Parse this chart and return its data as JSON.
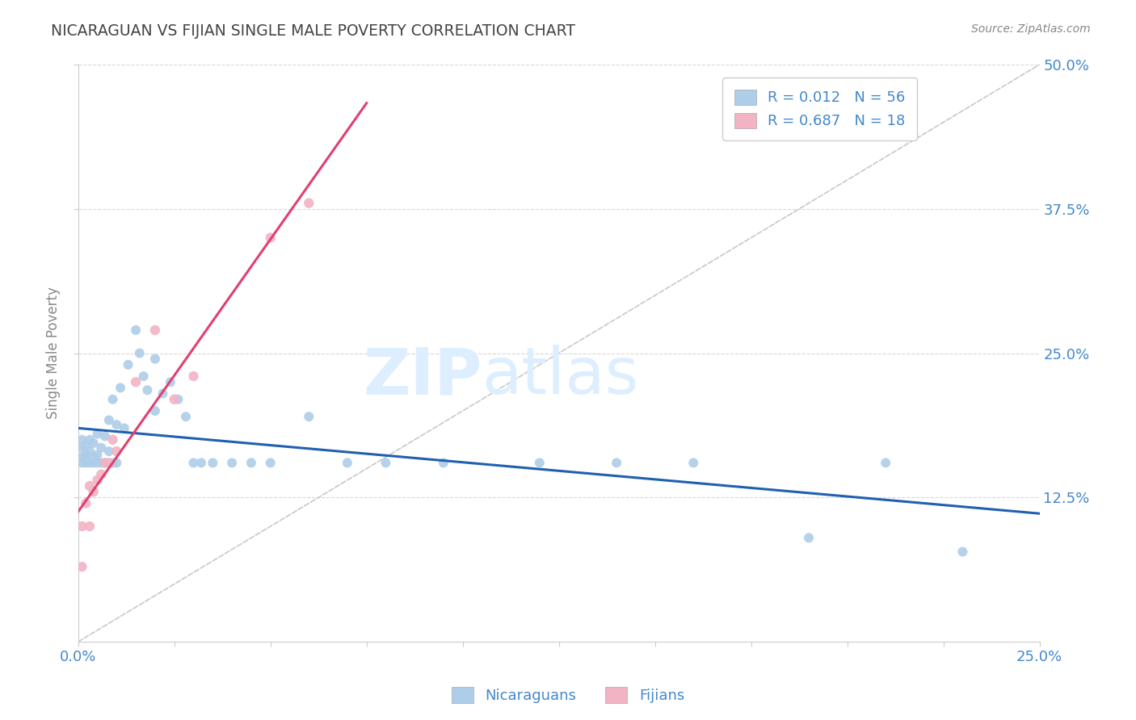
{
  "title": "NICARAGUAN VS FIJIAN SINGLE MALE POVERTY CORRELATION CHART",
  "source": "Source: ZipAtlas.com",
  "ylabel": "Single Male Poverty",
  "xlim": [
    0.0,
    0.25
  ],
  "ylim": [
    0.0,
    0.5
  ],
  "yticks": [
    0.125,
    0.25,
    0.375,
    0.5
  ],
  "ytick_labels_right": [
    "12.5%",
    "25.0%",
    "37.5%",
    "50.0%"
  ],
  "xtick_positions": [
    0.0,
    0.25
  ],
  "xtick_labels": [
    "0.0%",
    "25.0%"
  ],
  "nicaraguan_color": "#aecde8",
  "fijian_color": "#f2b3c4",
  "nicaraguan_line_color": "#2060b0",
  "fijian_line_color": "#e04070",
  "ref_line_color": "#c8c8c8",
  "background_color": "#ffffff",
  "title_color": "#444444",
  "tick_label_color": "#4488cc",
  "ylabel_color": "#888888",
  "source_color": "#888888",
  "watermark_color": "#ddeeff",
  "nic_x": [
    0.001,
    0.001,
    0.001,
    0.001,
    0.002,
    0.002,
    0.002,
    0.002,
    0.003,
    0.003,
    0.003,
    0.004,
    0.004,
    0.004,
    0.005,
    0.005,
    0.005,
    0.006,
    0.006,
    0.007,
    0.007,
    0.008,
    0.008,
    0.009,
    0.009,
    0.01,
    0.01,
    0.011,
    0.012,
    0.013,
    0.015,
    0.016,
    0.017,
    0.018,
    0.02,
    0.02,
    0.022,
    0.024,
    0.026,
    0.028,
    0.03,
    0.032,
    0.035,
    0.04,
    0.045,
    0.05,
    0.06,
    0.07,
    0.08,
    0.095,
    0.12,
    0.14,
    0.16,
    0.19,
    0.21,
    0.23
  ],
  "nic_y": [
    0.155,
    0.16,
    0.168,
    0.175,
    0.155,
    0.158,
    0.162,
    0.17,
    0.155,
    0.165,
    0.175,
    0.155,
    0.16,
    0.172,
    0.155,
    0.162,
    0.18,
    0.155,
    0.168,
    0.155,
    0.178,
    0.165,
    0.192,
    0.155,
    0.21,
    0.155,
    0.188,
    0.22,
    0.185,
    0.24,
    0.27,
    0.25,
    0.23,
    0.218,
    0.245,
    0.2,
    0.215,
    0.225,
    0.21,
    0.195,
    0.155,
    0.155,
    0.155,
    0.155,
    0.155,
    0.155,
    0.195,
    0.155,
    0.155,
    0.155,
    0.155,
    0.155,
    0.155,
    0.09,
    0.155,
    0.078
  ],
  "fij_x": [
    0.001,
    0.001,
    0.002,
    0.003,
    0.003,
    0.004,
    0.005,
    0.006,
    0.007,
    0.008,
    0.009,
    0.01,
    0.015,
    0.02,
    0.025,
    0.03,
    0.05,
    0.06
  ],
  "fij_y": [
    0.065,
    0.1,
    0.12,
    0.1,
    0.135,
    0.13,
    0.14,
    0.145,
    0.155,
    0.155,
    0.175,
    0.165,
    0.225,
    0.27,
    0.21,
    0.23,
    0.35,
    0.38
  ]
}
